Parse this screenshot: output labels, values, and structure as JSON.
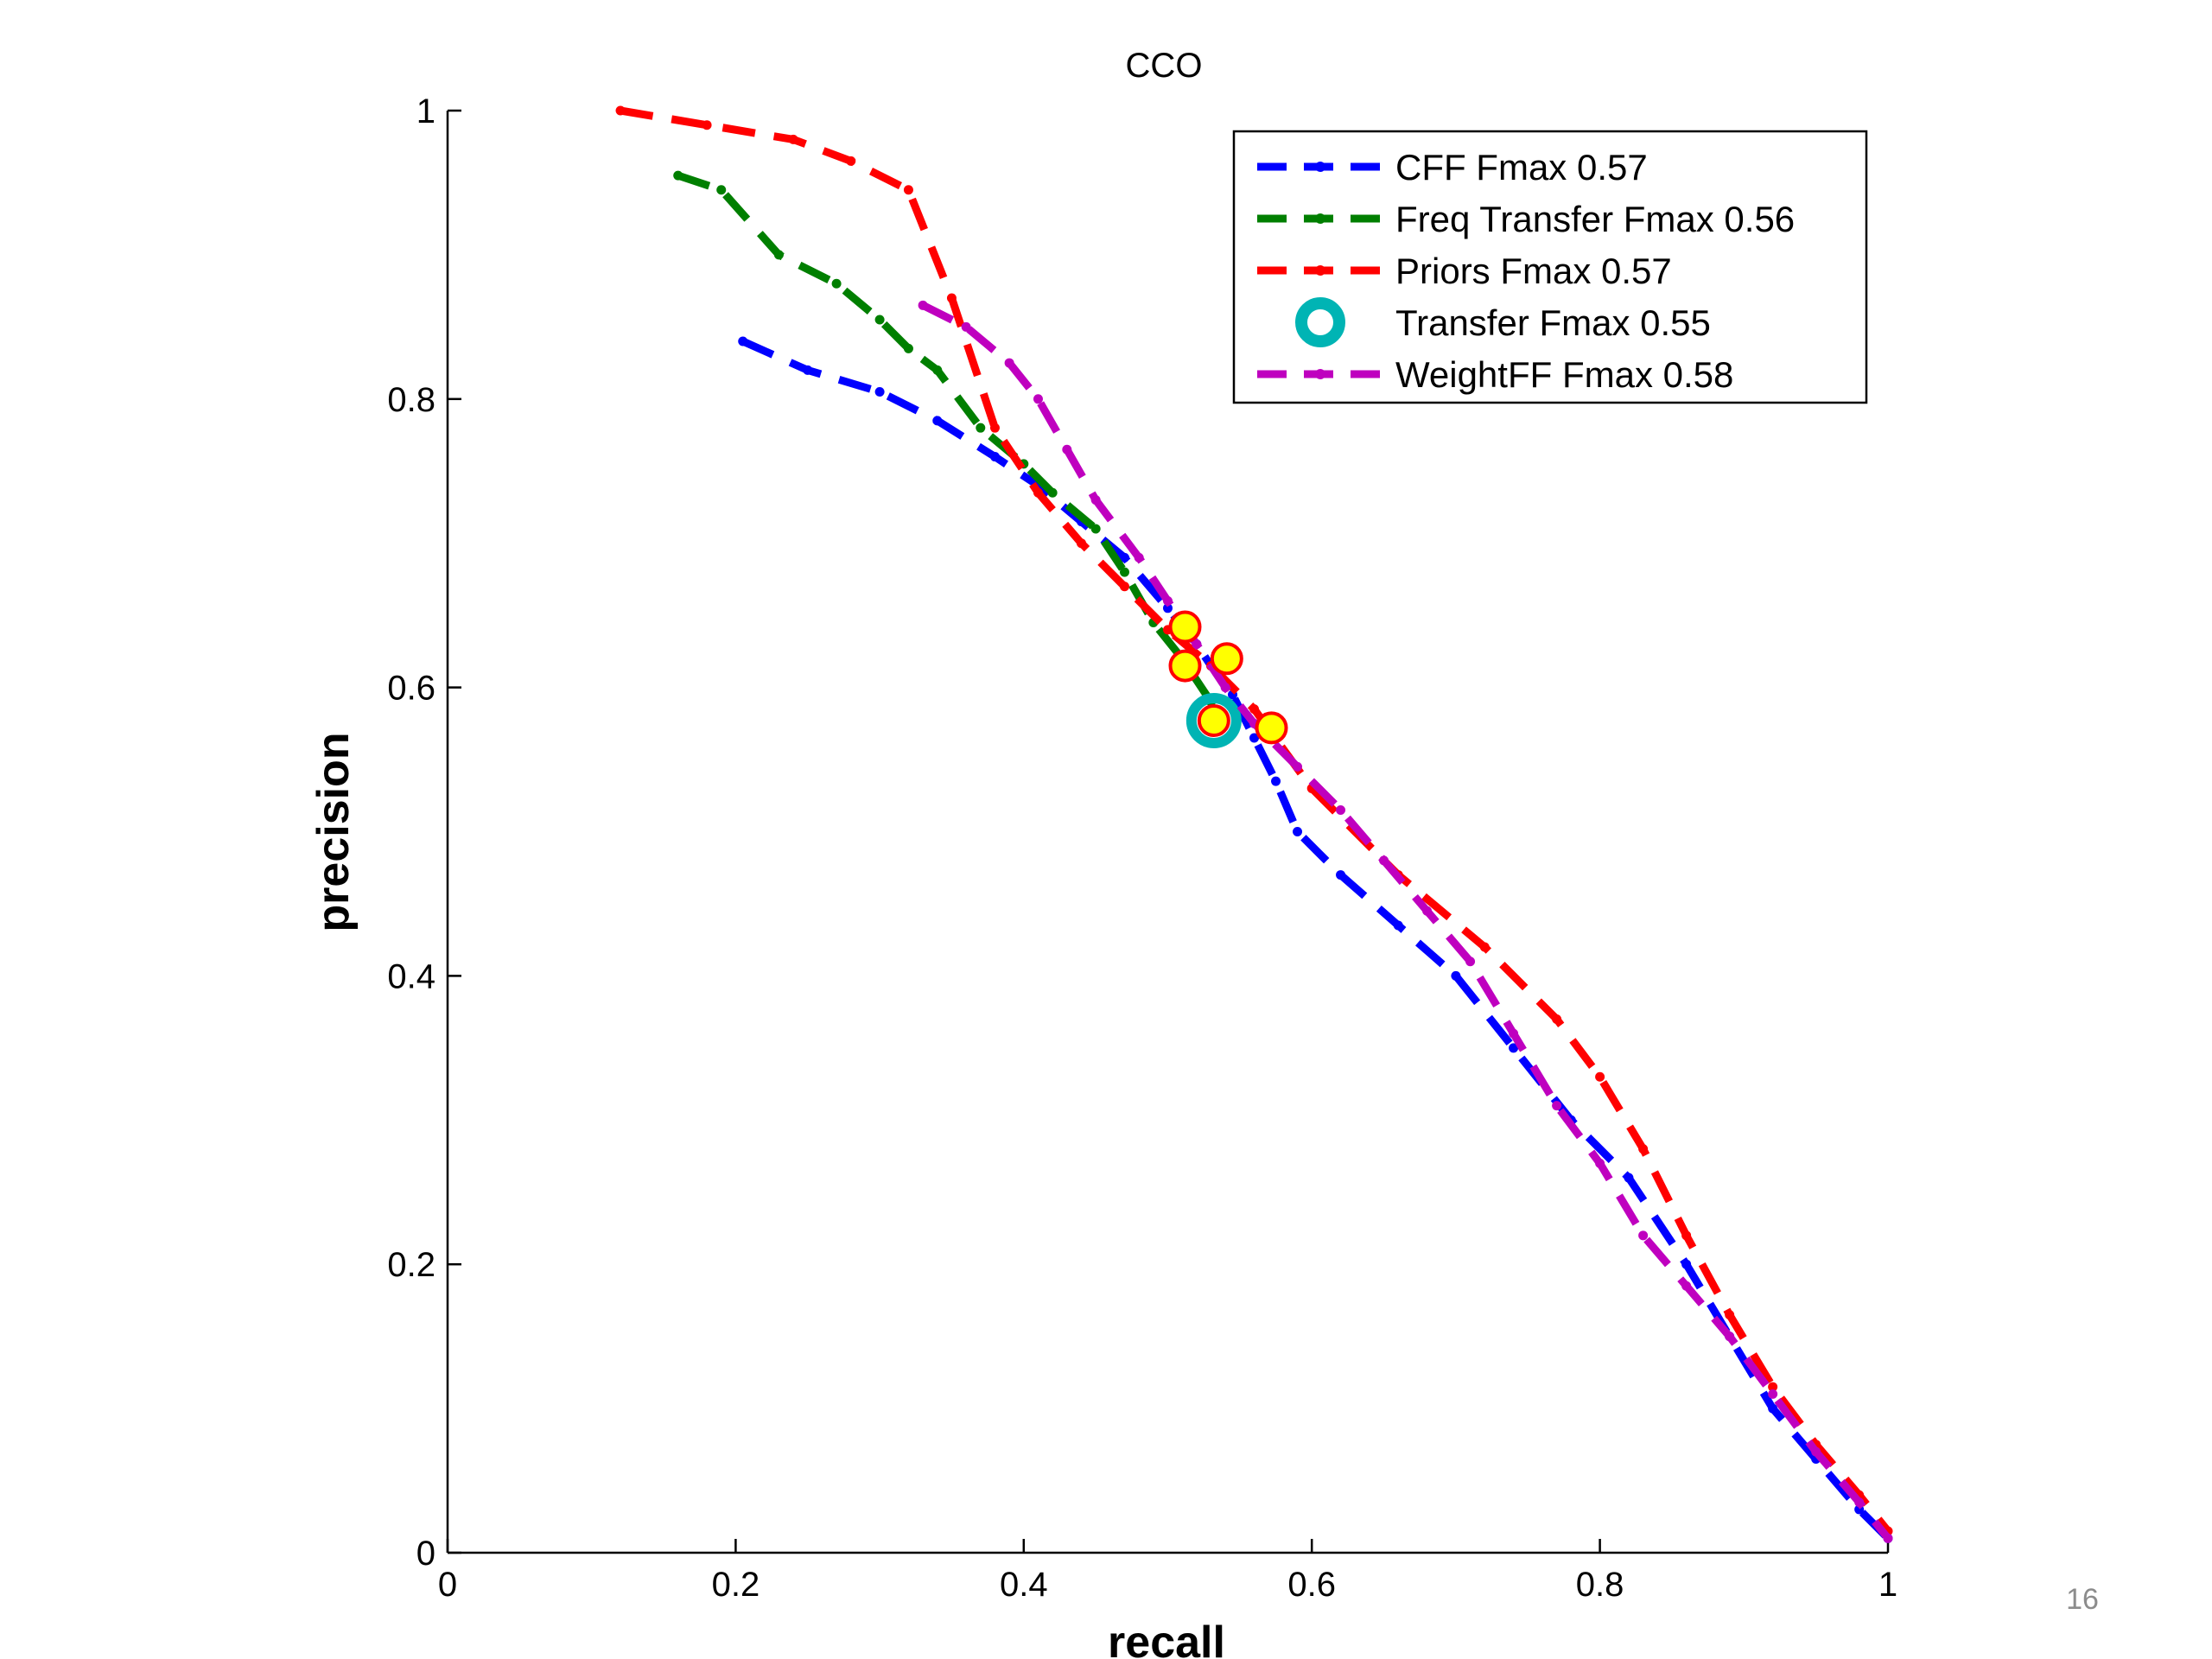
{
  "page_number": "16",
  "chart_data": {
    "type": "line",
    "title": "CCO",
    "xlabel": "recall",
    "ylabel": "precision",
    "xlim": [
      0,
      1
    ],
    "ylim": [
      0,
      1
    ],
    "xticks": [
      "0",
      "0.2",
      "0.4",
      "0.6",
      "0.8",
      "1"
    ],
    "yticks": [
      "0",
      "0.2",
      "0.4",
      "0.6",
      "0.8",
      "1"
    ],
    "grid": false,
    "legend_position": "top-right",
    "series": [
      {
        "name": "CFF Fmax 0.57",
        "color": "#0000ff",
        "style": "dashed-dots",
        "x": [
          0.205,
          0.25,
          0.3,
          0.34,
          0.38,
          0.41,
          0.44,
          0.47,
          0.5,
          0.52,
          0.53,
          0.545,
          0.56,
          0.575,
          0.59,
          0.62,
          0.66,
          0.7,
          0.74,
          0.78,
          0.82,
          0.86,
          0.89,
          0.92,
          0.95,
          0.98,
          1.0
        ],
        "y": [
          0.84,
          0.82,
          0.805,
          0.785,
          0.76,
          0.74,
          0.715,
          0.69,
          0.655,
          0.63,
          0.615,
          0.595,
          0.565,
          0.535,
          0.5,
          0.47,
          0.435,
          0.4,
          0.35,
          0.3,
          0.26,
          0.2,
          0.15,
          0.1,
          0.065,
          0.03,
          0.01
        ]
      },
      {
        "name": "Freq Transfer Fmax 0.56",
        "color": "#007f00",
        "style": "dashed-dots",
        "x": [
          0.16,
          0.19,
          0.23,
          0.27,
          0.3,
          0.32,
          0.34,
          0.37,
          0.4,
          0.42,
          0.45,
          0.47,
          0.49,
          0.51,
          0.53
        ],
        "y": [
          0.955,
          0.945,
          0.9,
          0.88,
          0.855,
          0.835,
          0.82,
          0.78,
          0.755,
          0.735,
          0.71,
          0.68,
          0.645,
          0.62,
          0.59
        ]
      },
      {
        "name": "Priors Fmax 0.57",
        "color": "#ff0000",
        "style": "dashed-dots",
        "x": [
          0.12,
          0.18,
          0.24,
          0.28,
          0.32,
          0.35,
          0.38,
          0.41,
          0.44,
          0.47,
          0.5,
          0.53,
          0.56,
          0.6,
          0.66,
          0.72,
          0.77,
          0.8,
          0.83,
          0.86,
          0.89,
          0.92,
          0.95,
          0.98,
          1.0
        ],
        "y": [
          1.0,
          0.99,
          0.98,
          0.965,
          0.945,
          0.87,
          0.78,
          0.735,
          0.7,
          0.67,
          0.64,
          0.615,
          0.585,
          0.53,
          0.47,
          0.42,
          0.37,
          0.33,
          0.28,
          0.22,
          0.165,
          0.115,
          0.075,
          0.04,
          0.015
        ]
      },
      {
        "name": "Transfer Fmax 0.55",
        "color": "#00b4b4",
        "style": "marker",
        "x": [
          0.532
        ],
        "y": [
          0.577
        ]
      },
      {
        "name": "WeightFF Fmax 0.58",
        "color": "#bf00bf",
        "style": "dashed-dots",
        "x": [
          0.33,
          0.36,
          0.39,
          0.41,
          0.43,
          0.45,
          0.48,
          0.5,
          0.52,
          0.54,
          0.56,
          0.59,
          0.62,
          0.65,
          0.68,
          0.71,
          0.74,
          0.77,
          0.8,
          0.83,
          0.86,
          0.89,
          0.92,
          0.95,
          0.98,
          1.0
        ],
        "y": [
          0.865,
          0.85,
          0.825,
          0.8,
          0.765,
          0.73,
          0.69,
          0.66,
          0.63,
          0.6,
          0.575,
          0.545,
          0.515,
          0.48,
          0.445,
          0.41,
          0.36,
          0.31,
          0.27,
          0.22,
          0.185,
          0.15,
          0.11,
          0.07,
          0.035,
          0.01
        ]
      }
    ],
    "fmax_points": {
      "color": "#ffff00",
      "edge_color": "#ff0000",
      "x": [
        0.512,
        0.512,
        0.541,
        0.532,
        0.572
      ],
      "y": [
        0.642,
        0.615,
        0.62,
        0.577,
        0.572
      ]
    }
  }
}
